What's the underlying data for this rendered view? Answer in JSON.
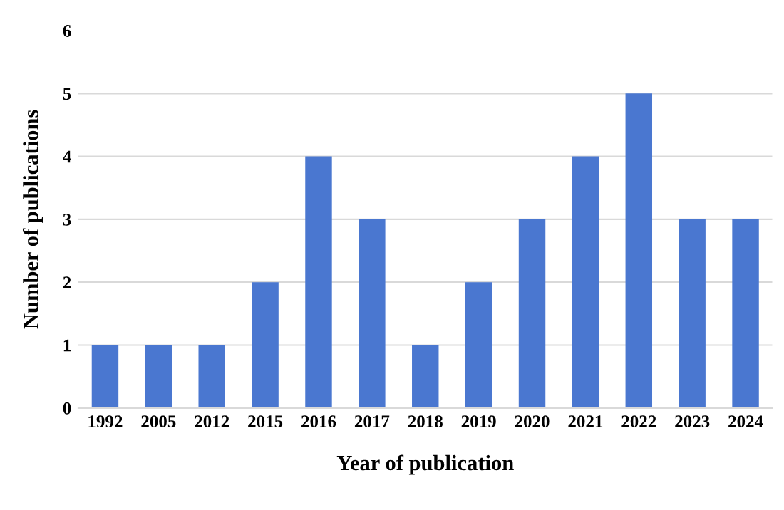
{
  "chart_data": {
    "type": "bar",
    "xlabel": "Year of publication",
    "ylabel": "Number of publications",
    "categories": [
      "1992",
      "2005",
      "2012",
      "2015",
      "2016",
      "2017",
      "2018",
      "2019",
      "2020",
      "2021",
      "2022",
      "2023",
      "2024"
    ],
    "values": [
      1,
      1,
      1,
      2,
      4,
      3,
      1,
      2,
      3,
      4,
      5,
      3,
      3
    ],
    "color": "#4a77d0",
    "ylim": [
      0,
      6
    ],
    "yticks": [
      0,
      1,
      2,
      3,
      4,
      5,
      6
    ],
    "grid": "y"
  }
}
